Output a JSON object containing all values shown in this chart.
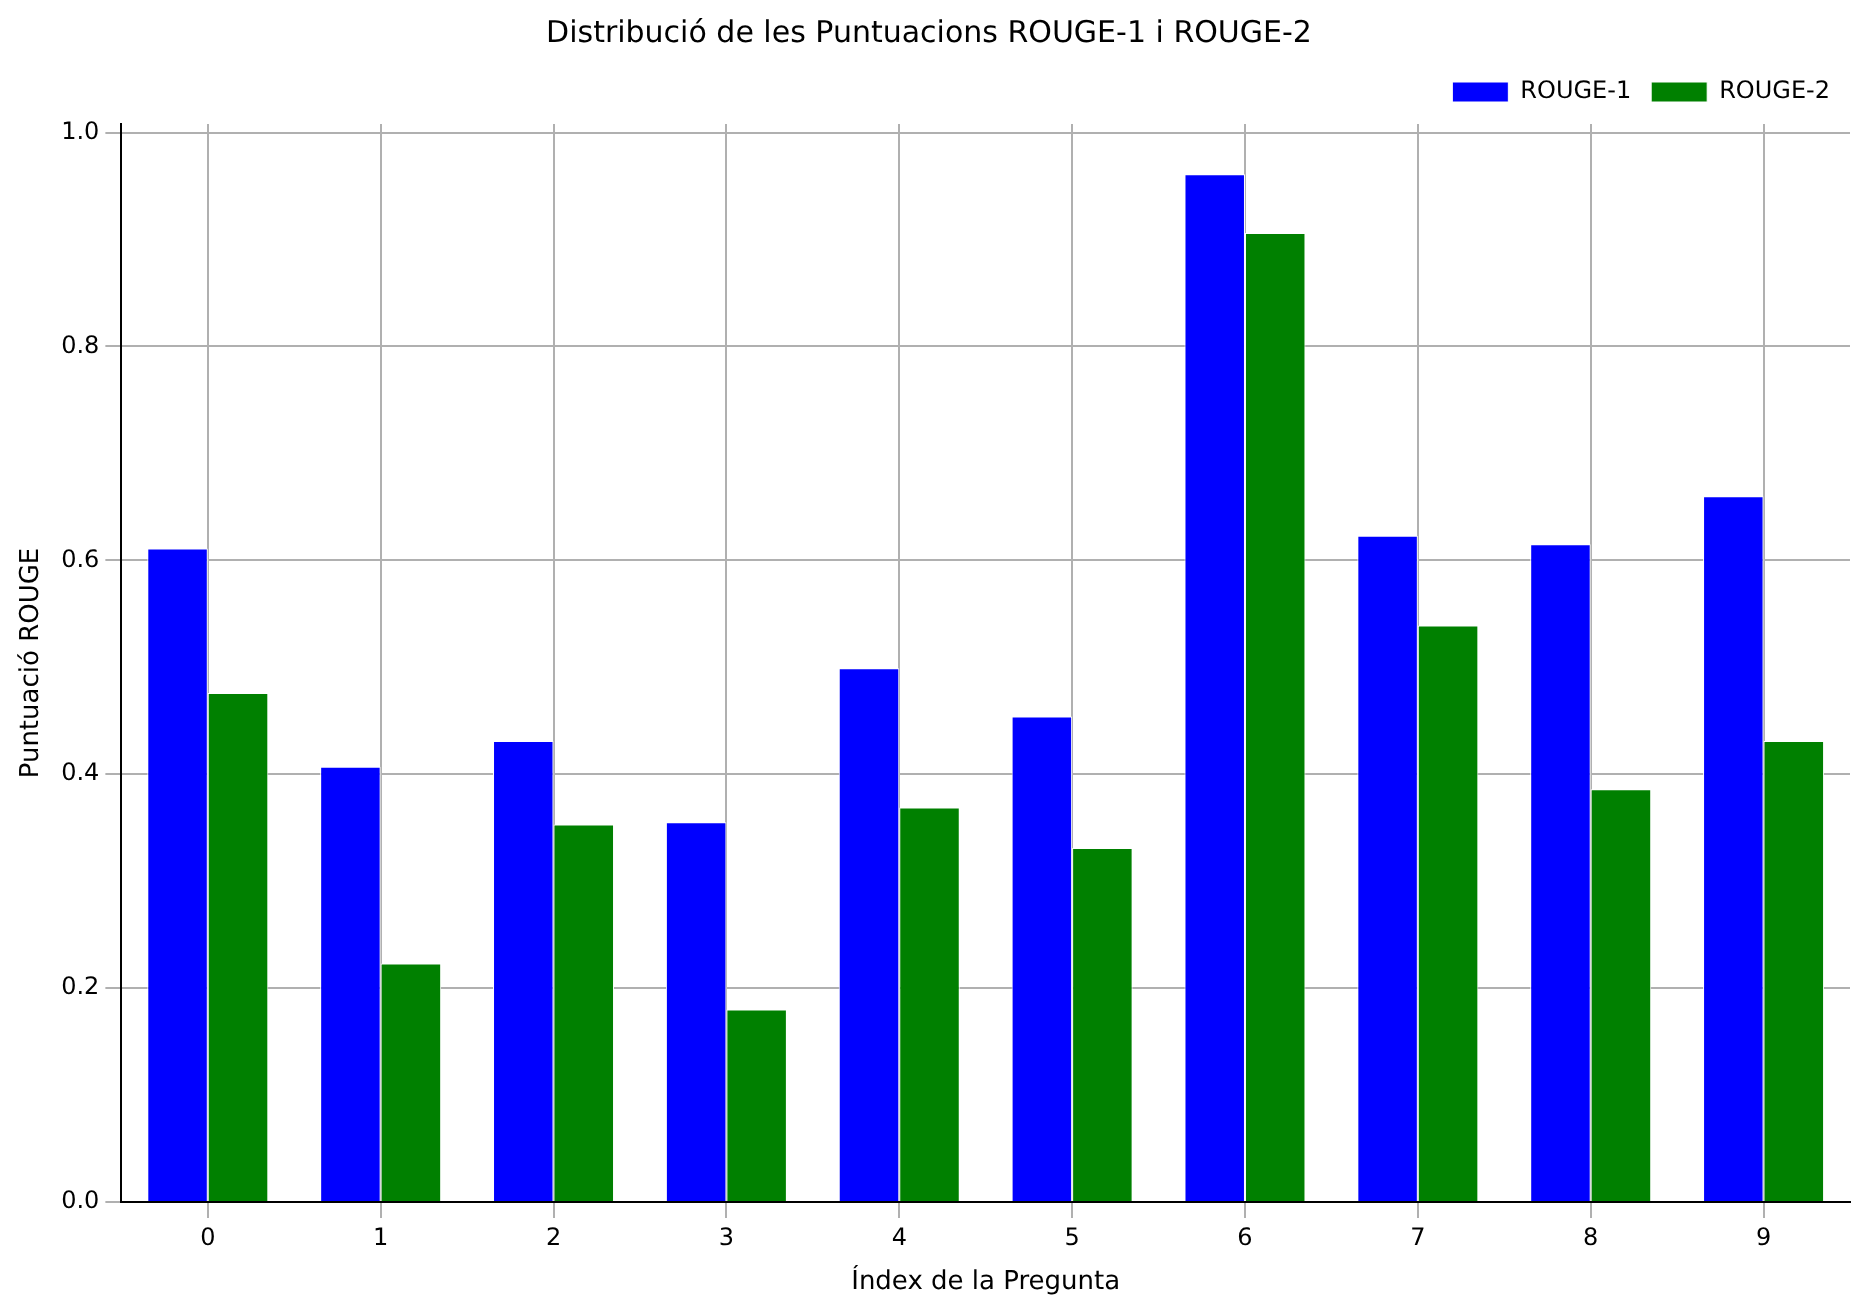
{
  "chart_data": {
    "type": "bar",
    "title": "Distribució de les Puntuacions ROUGE-1 i ROUGE-2",
    "xlabel": "Índex de la Pregunta",
    "ylabel": "Puntuació ROUGE",
    "categories": [
      "0",
      "1",
      "2",
      "3",
      "4",
      "5",
      "6",
      "7",
      "8",
      "9"
    ],
    "series": [
      {
        "name": "ROUGE-1",
        "color": "#0000ff",
        "values": [
          0.611,
          0.407,
          0.431,
          0.355,
          0.499,
          0.454,
          0.961,
          0.623,
          0.615,
          0.66
        ]
      },
      {
        "name": "ROUGE-2",
        "color": "#008000",
        "values": [
          0.476,
          0.223,
          0.353,
          0.18,
          0.369,
          0.331,
          0.906,
          0.539,
          0.386,
          0.431
        ]
      }
    ],
    "ylim": [
      0,
      1.008
    ],
    "yticks": [
      {
        "value": 0,
        "label": "0.0"
      },
      {
        "value": 0.2,
        "label": "0.2"
      },
      {
        "value": 0.4,
        "label": "0.4"
      },
      {
        "value": 0.6,
        "label": "0.6"
      },
      {
        "value": 0.8,
        "label": "0.8"
      },
      {
        "value": 1.0,
        "label": "1.0"
      }
    ],
    "grid": true,
    "legend": "top right"
  }
}
